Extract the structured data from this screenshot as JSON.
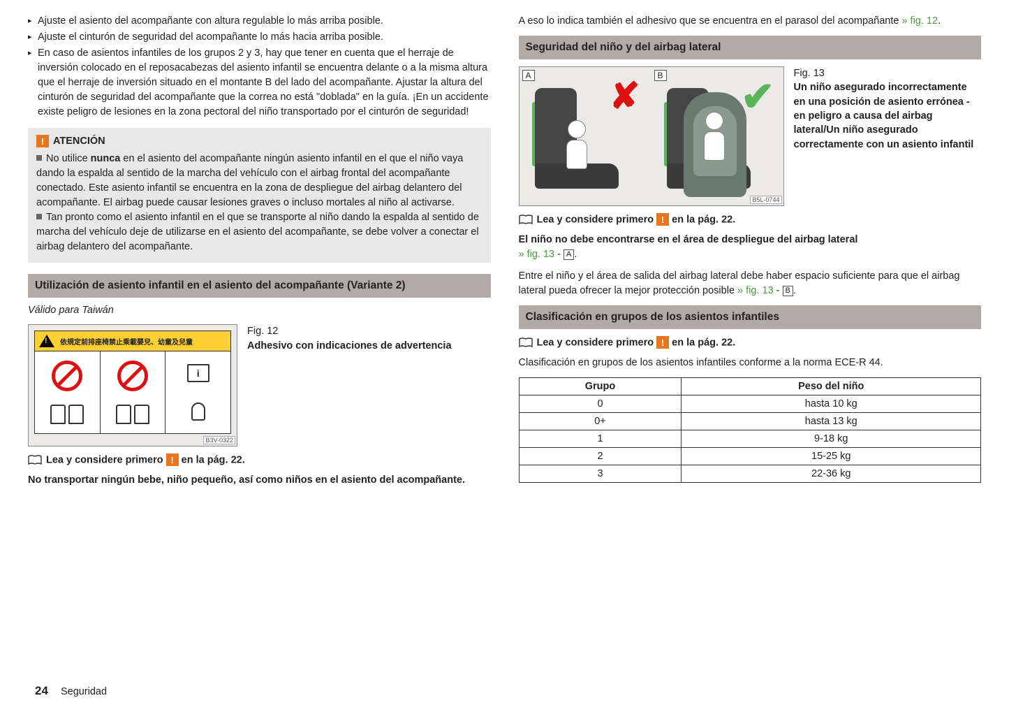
{
  "left": {
    "bullets": [
      "Ajuste el asiento del acompañante con altura regulable lo más arriba posible.",
      "Ajuste el cinturón de seguridad del acompañante lo más hacia arriba posible.",
      "En caso de asientos infantiles de los grupos 2 y 3, hay que tener en cuenta que el herraje de inversión colocado en el reposacabezas del asiento infantil se encuentra delante o a la misma altura que el herraje de inversión situado en el montante B del lado del acompañante. Ajustar la altura del cinturón de seguridad del acompañante que la correa no está \"doblada\" en la guía. ¡En un accidente existe peligro de lesiones en la zona pectoral del niño transportado por el cinturón de seguridad!"
    ],
    "warning_title": "ATENCIÓN",
    "warning1_pre": "No utilice ",
    "warning1_bold": "nunca",
    "warning1_post": " en el asiento del acompañante ningún asiento infantil en el que el niño vaya dando la espalda al sentido de la marcha del vehículo con el airbag frontal del acompañante conectado. Este asiento infantil se encuentra en la zona de despliegue del airbag delantero del acompañante. El airbag puede causar lesiones graves o incluso mortales al niño al activarse.",
    "warning2": "Tan pronto como el asiento infantil en el que se transporte al niño dando la espalda al sentido de marcha del vehículo deje de utilizarse en el asiento del acompañante, se debe volver a conectar el airbag delantero del acompañante.",
    "section2_title": "Utilización de asiento infantil en el asiento del acompañante (Variante 2)",
    "section2_note": "Válido para Taiwán",
    "fig12_num": "Fig. 12",
    "fig12_title": "Adhesivo con indicaciones de advertencia",
    "fig12_code": "B3V-0322",
    "fig12_cn": "依規定前排座椅禁止乘載嬰兒、幼童及兒童",
    "read_first_pre": "Lea y considere primero ",
    "read_first_post": " en la pág. 22.",
    "no_transport": "No transportar ningún bebe, niño pequeño, así como niños en el asiento del acompañante."
  },
  "right": {
    "intro_pre": "A eso lo indica también el adhesivo que se encuentra en el parasol del acompañante ",
    "intro_link": "» fig. 12",
    "intro_post": ".",
    "section3_title": "Seguridad del niño y del airbag lateral",
    "fig13_num": "Fig. 13",
    "fig13_title": "Un niño asegurado incorrectamente en una posición de asiento errónea - en peligro a causa del airbag lateral/Un niño asegurado correctamente con un asiento infantil",
    "fig13_code": "B5L-0744",
    "fig13_labelA": "A",
    "fig13_labelB": "B",
    "read_first_pre": "Lea y considere primero ",
    "read_first_post": " en la pág. 22.",
    "area_line_pre": "El niño no debe encontrarse en el área de despliegue del airbag lateral",
    "area_link": "» fig. 13",
    "area_dash_a": "A",
    "space_pre": "Entre el niño y el área de salida del airbag lateral debe haber espacio suficiente para que el airbag lateral pueda ofrecer la mejor protección posible ",
    "space_link": "» fig. 13",
    "space_dash_b": "B",
    "section4_title": "Clasificación en grupos de los asientos infantiles",
    "class_intro": "Clasificación en grupos de los asientos infantiles conforme a la norma ECE-R 44.",
    "table": {
      "headers": [
        "Grupo",
        "Peso del niño"
      ],
      "rows": [
        [
          "0",
          "hasta 10 kg"
        ],
        [
          "0+",
          "hasta 13 kg"
        ],
        [
          "1",
          "9-18 kg"
        ],
        [
          "2",
          "15-25 kg"
        ],
        [
          "3",
          "22-36 kg"
        ]
      ]
    }
  },
  "footer": {
    "page": "24",
    "section": "Seguridad"
  },
  "colors": {
    "link": "#4a9d3f",
    "orange": "#e8761e",
    "headbg": "#b0aba7",
    "warnbg": "#e8e8e8"
  }
}
